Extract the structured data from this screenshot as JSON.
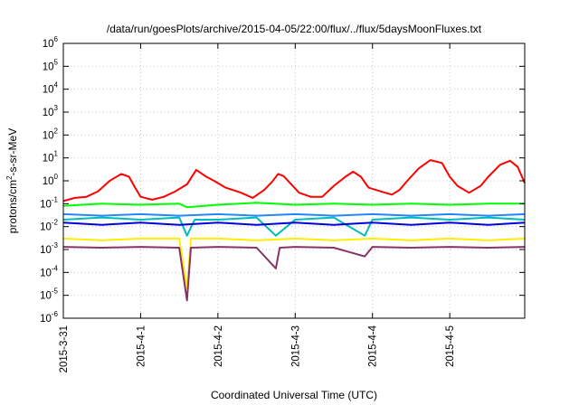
{
  "chart_data": {
    "type": "line",
    "title": "/data/run/goesPlots/archive/2015-04-05/22:00/flux/../flux/5daysMoonFluxes.txt",
    "xlabel": "Coordinated Universal Time (UTC)",
    "ylabel": {
      "prefix": "protons/cm",
      "exp": "2",
      "suffix": "-s-sr-MeV"
    },
    "yscale": "log",
    "ylim": [
      1e-06,
      1000000.0
    ],
    "y_ticks": [
      {
        "value": 1e-06,
        "base": "10",
        "exp": "-6"
      },
      {
        "value": 1e-05,
        "base": "10",
        "exp": "-5"
      },
      {
        "value": 0.0001,
        "base": "10",
        "exp": "-4"
      },
      {
        "value": 0.001,
        "base": "10",
        "exp": "-3"
      },
      {
        "value": 0.01,
        "base": "10",
        "exp": "-2"
      },
      {
        "value": 0.1,
        "base": "10",
        "exp": "-1"
      },
      {
        "value": 1.0,
        "base": "10",
        "exp": "0"
      },
      {
        "value": 10.0,
        "base": "10",
        "exp": "1"
      },
      {
        "value": 100.0,
        "base": "10",
        "exp": "2"
      },
      {
        "value": 1000.0,
        "base": "10",
        "exp": "3"
      },
      {
        "value": 10000.0,
        "base": "10",
        "exp": "4"
      },
      {
        "value": 100000.0,
        "base": "10",
        "exp": "5"
      },
      {
        "value": 1000000.0,
        "base": "10",
        "exp": "6"
      }
    ],
    "x_range_days": [
      0,
      5.97
    ],
    "x_ticks": [
      {
        "value": 0,
        "label": "2015-3-31"
      },
      {
        "value": 1,
        "label": "2015-4-1"
      },
      {
        "value": 2,
        "label": "2015-4-2"
      },
      {
        "value": 3,
        "label": "2015-4-3"
      },
      {
        "value": 4,
        "label": "2015-4-4"
      },
      {
        "value": 5,
        "label": "2015-4-5"
      }
    ],
    "grid": true,
    "legend": "none",
    "series": [
      {
        "color": "#ff0000",
        "points": [
          [
            0,
            0.13
          ],
          [
            0.15,
            0.18
          ],
          [
            0.3,
            0.2
          ],
          [
            0.45,
            0.35
          ],
          [
            0.6,
            1.0
          ],
          [
            0.75,
            2.0
          ],
          [
            0.85,
            1.5
          ],
          [
            0.93,
            0.5
          ],
          [
            1.0,
            0.2
          ],
          [
            1.15,
            0.15
          ],
          [
            1.3,
            0.2
          ],
          [
            1.45,
            0.35
          ],
          [
            1.6,
            0.7
          ],
          [
            1.72,
            3.0
          ],
          [
            1.85,
            1.5
          ],
          [
            1.95,
            1.0
          ],
          [
            2.1,
            0.5
          ],
          [
            2.3,
            0.3
          ],
          [
            2.45,
            0.18
          ],
          [
            2.6,
            0.4
          ],
          [
            2.7,
            0.9
          ],
          [
            2.78,
            2.0
          ],
          [
            2.85,
            1.6
          ],
          [
            2.95,
            0.7
          ],
          [
            3.05,
            0.3
          ],
          [
            3.2,
            0.2
          ],
          [
            3.35,
            0.2
          ],
          [
            3.5,
            0.6
          ],
          [
            3.65,
            1.5
          ],
          [
            3.75,
            2.5
          ],
          [
            3.85,
            1.5
          ],
          [
            3.95,
            0.5
          ],
          [
            4.1,
            0.35
          ],
          [
            4.25,
            0.25
          ],
          [
            4.35,
            0.4
          ],
          [
            4.45,
            1.0
          ],
          [
            4.6,
            3.5
          ],
          [
            4.75,
            8.0
          ],
          [
            4.9,
            6.0
          ],
          [
            5.0,
            1.5
          ],
          [
            5.1,
            0.6
          ],
          [
            5.25,
            0.3
          ],
          [
            5.4,
            0.6
          ],
          [
            5.5,
            1.5
          ],
          [
            5.65,
            5.0
          ],
          [
            5.78,
            7.5
          ],
          [
            5.88,
            4.0
          ],
          [
            5.97,
            0.8
          ]
        ]
      },
      {
        "color": "#00ff00",
        "points": [
          [
            0,
            0.08
          ],
          [
            0.5,
            0.1
          ],
          [
            1.0,
            0.09
          ],
          [
            1.5,
            0.1
          ],
          [
            1.6,
            0.07
          ],
          [
            2.0,
            0.09
          ],
          [
            2.5,
            0.11
          ],
          [
            3.0,
            0.09
          ],
          [
            3.5,
            0.1
          ],
          [
            4.0,
            0.09
          ],
          [
            4.5,
            0.1
          ],
          [
            5.0,
            0.09
          ],
          [
            5.5,
            0.1
          ],
          [
            5.97,
            0.1
          ]
        ]
      },
      {
        "color": "#00bbbb",
        "points": [
          [
            0,
            0.02
          ],
          [
            0.5,
            0.025
          ],
          [
            1.0,
            0.02
          ],
          [
            1.5,
            0.025
          ],
          [
            1.6,
            0.004
          ],
          [
            1.7,
            0.02
          ],
          [
            2.0,
            0.02
          ],
          [
            2.5,
            0.025
          ],
          [
            2.75,
            0.004
          ],
          [
            3.0,
            0.02
          ],
          [
            3.5,
            0.025
          ],
          [
            3.9,
            0.004
          ],
          [
            4.0,
            0.02
          ],
          [
            4.5,
            0.025
          ],
          [
            5.0,
            0.02
          ],
          [
            5.5,
            0.025
          ],
          [
            5.97,
            0.02
          ]
        ]
      },
      {
        "color": "#2288ff",
        "points": [
          [
            0,
            0.035
          ],
          [
            0.5,
            0.03
          ],
          [
            1.0,
            0.035
          ],
          [
            1.5,
            0.03
          ],
          [
            2.0,
            0.035
          ],
          [
            2.5,
            0.03
          ],
          [
            3.0,
            0.035
          ],
          [
            3.5,
            0.03
          ],
          [
            4.0,
            0.035
          ],
          [
            4.5,
            0.03
          ],
          [
            5.0,
            0.035
          ],
          [
            5.5,
            0.03
          ],
          [
            5.97,
            0.035
          ]
        ]
      },
      {
        "color": "#0000dd",
        "points": [
          [
            0,
            0.015
          ],
          [
            0.5,
            0.012
          ],
          [
            1.0,
            0.015
          ],
          [
            1.5,
            0.012
          ],
          [
            2.0,
            0.015
          ],
          [
            2.5,
            0.012
          ],
          [
            3.0,
            0.015
          ],
          [
            3.5,
            0.012
          ],
          [
            4.0,
            0.015
          ],
          [
            4.5,
            0.012
          ],
          [
            5.0,
            0.015
          ],
          [
            5.5,
            0.012
          ],
          [
            5.97,
            0.015
          ]
        ]
      },
      {
        "color": "#ffee00",
        "points": [
          [
            0,
            0.003
          ],
          [
            0.5,
            0.0025
          ],
          [
            1.0,
            0.003
          ],
          [
            1.5,
            0.003
          ],
          [
            1.6,
            2e-05
          ],
          [
            1.65,
            0.003
          ],
          [
            2.0,
            0.003
          ],
          [
            2.5,
            0.0025
          ],
          [
            3.0,
            0.003
          ],
          [
            3.5,
            0.0025
          ],
          [
            4.0,
            0.003
          ],
          [
            4.5,
            0.0025
          ],
          [
            5.0,
            0.003
          ],
          [
            5.5,
            0.0025
          ],
          [
            5.97,
            0.003
          ]
        ]
      },
      {
        "color": "#883366",
        "points": [
          [
            0,
            0.0013
          ],
          [
            0.5,
            0.0012
          ],
          [
            1.0,
            0.0013
          ],
          [
            1.5,
            0.0012
          ],
          [
            1.6,
            6e-06
          ],
          [
            1.65,
            0.0012
          ],
          [
            2.0,
            0.0013
          ],
          [
            2.5,
            0.0012
          ],
          [
            2.75,
            0.00015
          ],
          [
            2.8,
            0.0012
          ],
          [
            3.0,
            0.0013
          ],
          [
            3.5,
            0.0012
          ],
          [
            3.9,
            0.0005
          ],
          [
            4.0,
            0.0013
          ],
          [
            4.5,
            0.0012
          ],
          [
            5.0,
            0.0013
          ],
          [
            5.5,
            0.0012
          ],
          [
            5.97,
            0.0013
          ]
        ]
      }
    ]
  }
}
